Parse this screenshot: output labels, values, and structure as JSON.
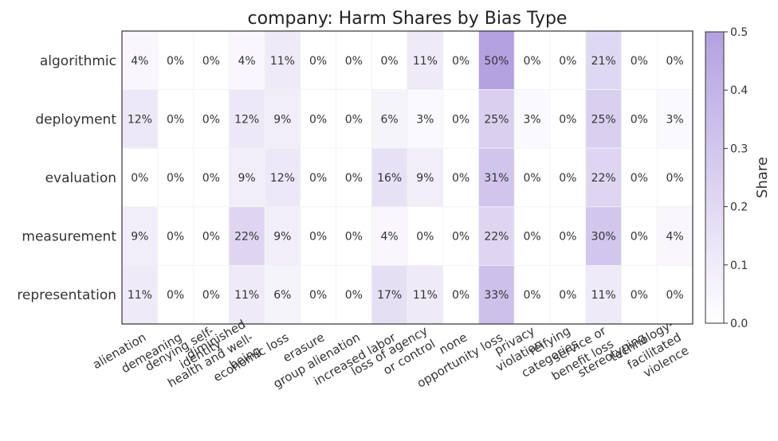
{
  "chart_data": {
    "type": "heatmap",
    "title": "company: Harm Shares by Bias Type",
    "rows": [
      "algorithmic",
      "deployment",
      "evaluation",
      "measurement",
      "representation"
    ],
    "columns": [
      [
        "alienation"
      ],
      [
        "demeaning"
      ],
      [
        "denying self-",
        "identity"
      ],
      [
        "diminished",
        "health and well-",
        "being"
      ],
      [
        "economic loss"
      ],
      [
        "erasure"
      ],
      [
        "group alienation"
      ],
      [
        "increased labor"
      ],
      [
        "loss of agency",
        "or control"
      ],
      [
        "none"
      ],
      [
        "opportunity loss"
      ],
      [
        "privacy",
        "violation"
      ],
      [
        "reifying",
        "categories"
      ],
      [
        "service or",
        "benefit loss"
      ],
      [
        "stereotyping"
      ],
      [
        "technology-",
        "facilitated",
        "violence"
      ]
    ],
    "values": [
      [
        0.04,
        0,
        0,
        0.04,
        0.11,
        0,
        0,
        0,
        0.11,
        0,
        0.5,
        0,
        0,
        0.21,
        0,
        0
      ],
      [
        0.12,
        0,
        0,
        0.12,
        0.09,
        0,
        0,
        0.06,
        0.03,
        0,
        0.25,
        0.03,
        0,
        0.25,
        0,
        0.03
      ],
      [
        0,
        0,
        0,
        0.09,
        0.12,
        0,
        0,
        0.16,
        0.09,
        0,
        0.31,
        0,
        0,
        0.22,
        0,
        0
      ],
      [
        0.09,
        0,
        0,
        0.22,
        0.09,
        0,
        0,
        0.04,
        0,
        0,
        0.22,
        0,
        0,
        0.3,
        0,
        0.04
      ],
      [
        0.11,
        0,
        0,
        0.11,
        0.06,
        0,
        0,
        0.17,
        0.11,
        0,
        0.33,
        0,
        0,
        0.11,
        0,
        0
      ]
    ],
    "cell_labels": [
      [
        "4%",
        "0%",
        "0%",
        "4%",
        "11%",
        "0%",
        "0%",
        "0%",
        "11%",
        "0%",
        "50%",
        "0%",
        "0%",
        "21%",
        "0%",
        "0%"
      ],
      [
        "12%",
        "0%",
        "0%",
        "12%",
        "9%",
        "0%",
        "0%",
        "6%",
        "3%",
        "0%",
        "25%",
        "3%",
        "0%",
        "25%",
        "0%",
        "3%"
      ],
      [
        "0%",
        "0%",
        "0%",
        "9%",
        "12%",
        "0%",
        "0%",
        "16%",
        "9%",
        "0%",
        "31%",
        "0%",
        "0%",
        "22%",
        "0%",
        "0%"
      ],
      [
        "9%",
        "0%",
        "0%",
        "22%",
        "9%",
        "0%",
        "0%",
        "4%",
        "0%",
        "0%",
        "22%",
        "0%",
        "0%",
        "30%",
        "0%",
        "4%"
      ],
      [
        "11%",
        "0%",
        "0%",
        "11%",
        "6%",
        "0%",
        "0%",
        "17%",
        "11%",
        "0%",
        "33%",
        "0%",
        "0%",
        "11%",
        "0%",
        "0%"
      ]
    ],
    "colorbar": {
      "label": "Share",
      "range": [
        0,
        0.5
      ],
      "ticks": [
        "0.0",
        "0.1",
        "0.2",
        "0.3",
        "0.4",
        "0.5"
      ],
      "color_low": "#ffffff",
      "color_high": "#b3a1e0"
    },
    "grid": false
  }
}
